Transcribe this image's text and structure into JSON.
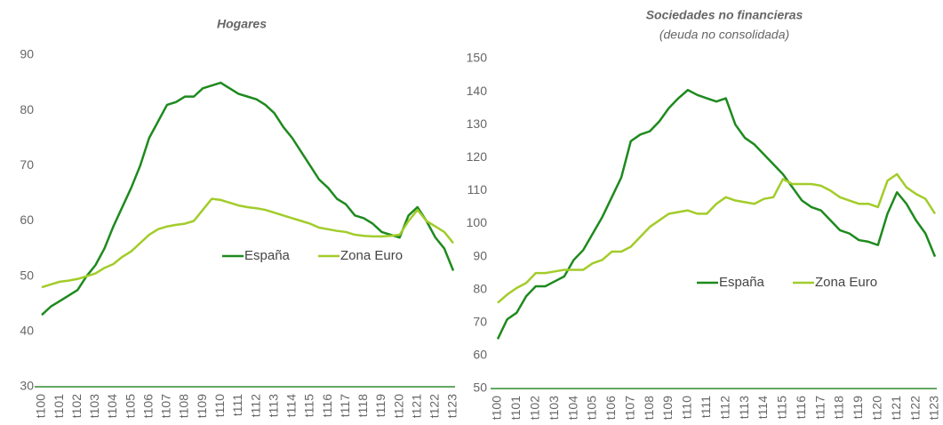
{
  "chart_data": [
    {
      "type": "line",
      "title": "Hogares",
      "categories": [
        "t100",
        null,
        "t101",
        null,
        "t102",
        null,
        "t103",
        null,
        "t104",
        null,
        "t105",
        null,
        "t106",
        null,
        "t107",
        null,
        "t108",
        null,
        "t109",
        null,
        "t110",
        null,
        "t111",
        null,
        "t112",
        null,
        "t113",
        null,
        "t114",
        null,
        "t115",
        null,
        "t116",
        null,
        "t117",
        null,
        "t118",
        null,
        "t119",
        null,
        "t120",
        null,
        "t121",
        null,
        "t122",
        null,
        "t123"
      ],
      "series": [
        {
          "name": "España",
          "color": "#1e8a1e",
          "values": [
            43,
            44.5,
            45.5,
            46.5,
            47.5,
            50,
            52,
            55,
            59,
            62.5,
            66,
            70,
            75,
            78,
            81,
            81.5,
            82.5,
            82.5,
            84,
            84.5,
            85,
            84,
            83,
            82.5,
            82,
            81,
            79.5,
            77,
            75,
            72.5,
            70,
            67.5,
            66,
            64,
            63,
            61,
            60.5,
            59.5,
            58,
            57.5,
            57,
            61,
            62.5,
            60,
            57,
            55,
            51
          ]
        },
        {
          "name": "Zona Euro",
          "color": "#a2cc2a",
          "values": [
            48,
            48.5,
            49,
            49.2,
            49.5,
            50,
            50.5,
            51.5,
            52.2,
            53.5,
            54.5,
            56,
            57.5,
            58.5,
            59,
            59.3,
            59.5,
            60,
            62,
            64,
            63.8,
            63.3,
            62.8,
            62.5,
            62.3,
            62,
            61.5,
            61,
            60.5,
            60,
            59.5,
            58.8,
            58.5,
            58.2,
            58,
            57.5,
            57.3,
            57.2,
            57.2,
            57.3,
            57.5,
            60,
            62,
            60,
            59,
            58,
            56
          ]
        }
      ],
      "ylim": [
        30,
        90
      ],
      "yticks": [
        30,
        40,
        50,
        60,
        70,
        80,
        90
      ],
      "grid": false
    },
    {
      "type": "line",
      "title": "Sociedades no financieras",
      "subtitle": "(deuda no consolidada)",
      "categories": [
        "t100",
        null,
        "t101",
        null,
        "t102",
        null,
        "t103",
        null,
        "t104",
        null,
        "t105",
        null,
        "t106",
        null,
        "t107",
        null,
        "t108",
        null,
        "t109",
        null,
        "t110",
        null,
        "t111",
        null,
        "t112",
        null,
        "t113",
        null,
        "t114",
        null,
        "t115",
        null,
        "t116",
        null,
        "t117",
        null,
        "t118",
        null,
        "t119",
        null,
        "t120",
        null,
        "t121",
        null,
        "t122",
        null,
        "t123"
      ],
      "series": [
        {
          "name": "España",
          "color": "#1e8a1e",
          "values": [
            65,
            71,
            73,
            78,
            81,
            81,
            82.5,
            84,
            89,
            92,
            97,
            102,
            108,
            114,
            125,
            127,
            128,
            131,
            135,
            138,
            140.5,
            139,
            138,
            137,
            138,
            130,
            126,
            124,
            121,
            118,
            115,
            111,
            107,
            105,
            104,
            101,
            98,
            97,
            95,
            94.5,
            93.5,
            103,
            109.5,
            106,
            101,
            97,
            90
          ]
        },
        {
          "name": "Zona Euro",
          "color": "#a2cc2a",
          "values": [
            76,
            78.5,
            80.5,
            82,
            85,
            85,
            85.5,
            86,
            86,
            86,
            88,
            89,
            91.5,
            91.5,
            93,
            96,
            99,
            101,
            103,
            103.5,
            104,
            103,
            103,
            106,
            108,
            107,
            106.5,
            106,
            107.5,
            108,
            113.5,
            112,
            112,
            112,
            111.5,
            110,
            108,
            107,
            106,
            106,
            105,
            113,
            115,
            111,
            109,
            107.5,
            103
          ]
        }
      ],
      "ylim": [
        50,
        150
      ],
      "yticks": [
        50,
        60,
        70,
        80,
        90,
        100,
        110,
        120,
        130,
        140,
        150
      ],
      "grid": false
    }
  ]
}
